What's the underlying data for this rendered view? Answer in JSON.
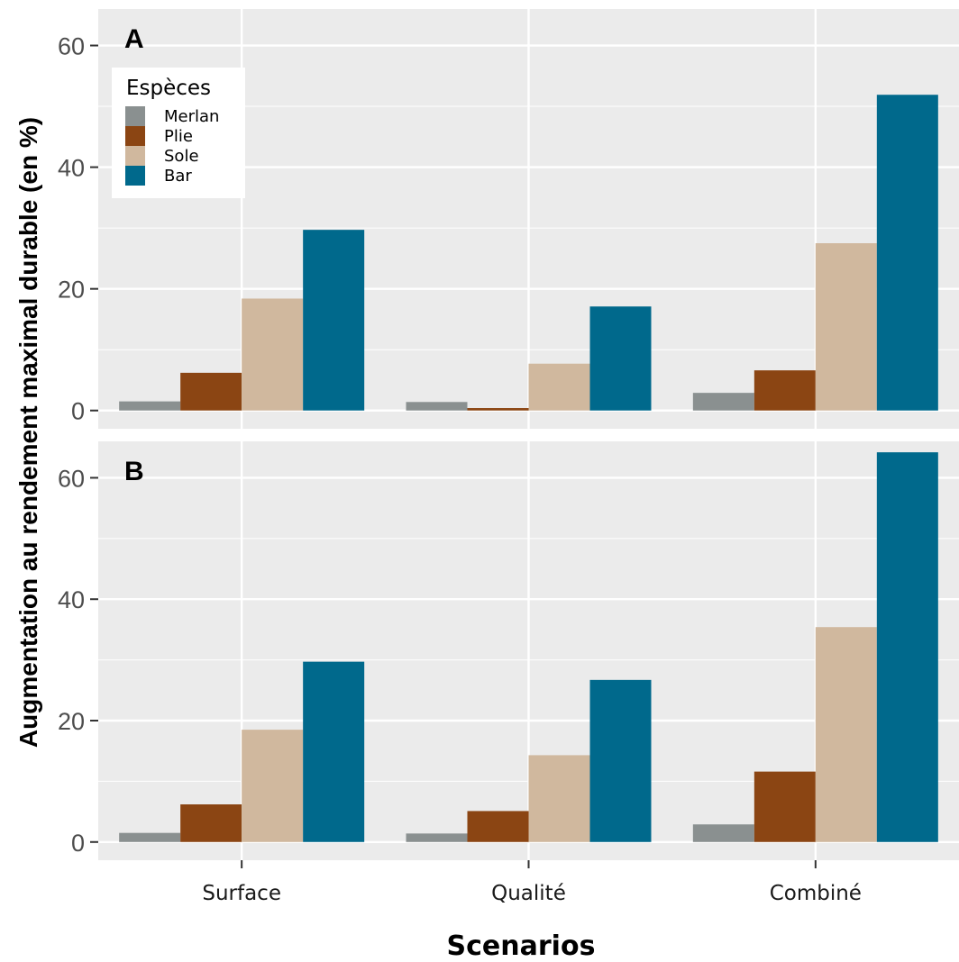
{
  "chart_data": {
    "type": "bar",
    "ylabel": "Augmentation au rendement maximal durable (en %)",
    "xlabel": "Scenarios",
    "categories": [
      "Surface",
      "Qualité",
      "Combiné"
    ],
    "ylim": [
      -3,
      66
    ],
    "yticks": [
      0,
      20,
      40,
      60
    ],
    "grid": true,
    "legend": {
      "title": "Espèces",
      "placement": "top-left",
      "entries": [
        "Merlan",
        "Plie",
        "Sole",
        "Bar"
      ]
    },
    "colors": {
      "Merlan": "#8a9090",
      "Plie": "#8b4513",
      "Sole": "#d0b89e",
      "Bar": "#00698c"
    },
    "panels": [
      {
        "label": "A",
        "series": [
          {
            "name": "Merlan",
            "values": [
              1.5,
              1.4,
              2.9
            ]
          },
          {
            "name": "Plie",
            "values": [
              6.2,
              0.4,
              6.6
            ]
          },
          {
            "name": "Sole",
            "values": [
              18.4,
              7.7,
              27.5
            ]
          },
          {
            "name": "Bar",
            "values": [
              29.7,
              17.1,
              51.9
            ]
          }
        ]
      },
      {
        "label": "B",
        "series": [
          {
            "name": "Merlan",
            "values": [
              1.5,
              1.4,
              2.9
            ]
          },
          {
            "name": "Plie",
            "values": [
              6.2,
              5.1,
              11.6
            ]
          },
          {
            "name": "Sole",
            "values": [
              18.5,
              14.3,
              35.4
            ]
          },
          {
            "name": "Bar",
            "values": [
              29.7,
              26.7,
              64.2
            ]
          }
        ]
      }
    ]
  }
}
